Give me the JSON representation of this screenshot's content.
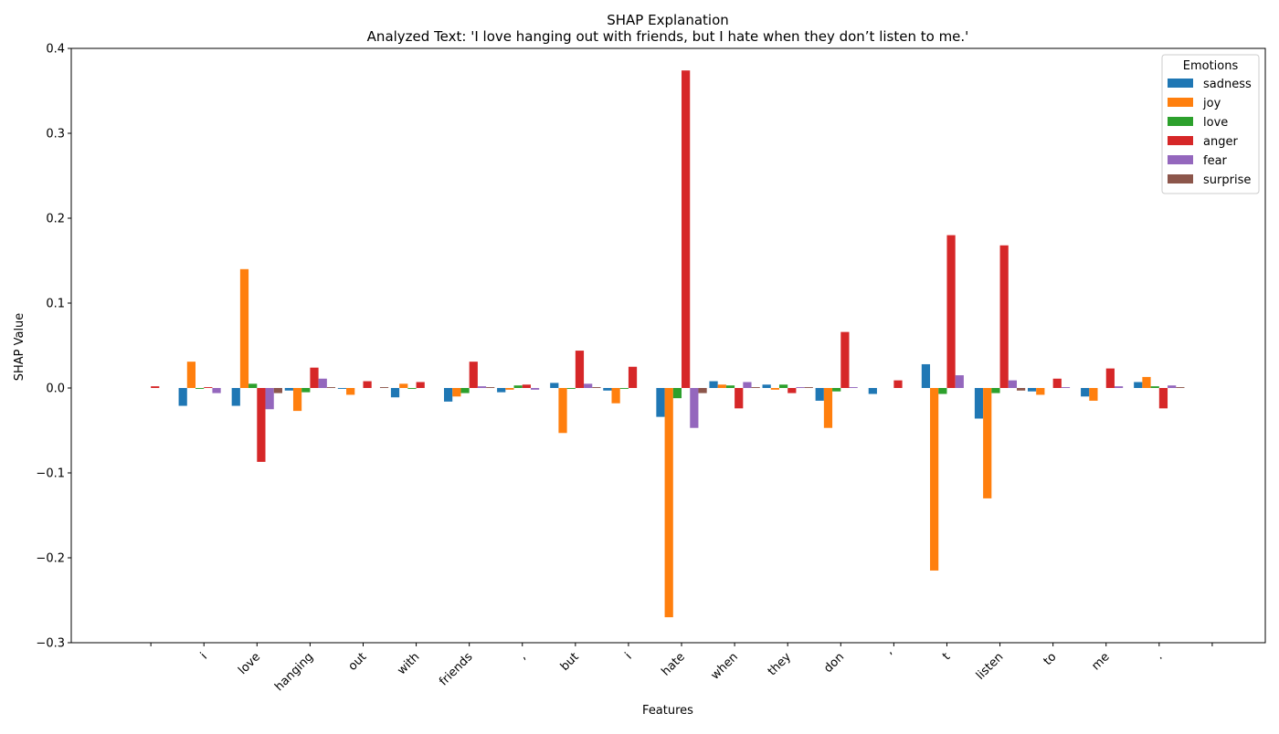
{
  "chart_data": {
    "type": "bar",
    "title": "SHAP Explanation",
    "subtitle": "Analyzed Text: 'I love hanging out with friends, but I hate when they don’t listen to me.'",
    "xlabel": "Features",
    "ylabel": "SHAP Value",
    "ylim": [
      -0.3,
      0.4
    ],
    "yticks": [
      -0.3,
      -0.2,
      -0.1,
      0.0,
      0.1,
      0.2,
      0.3,
      0.4
    ],
    "ytick_labels": [
      "−0.3",
      "−0.2",
      "−0.1",
      "0.0",
      "0.1",
      "0.2",
      "0.3",
      "0.4"
    ],
    "grid": false,
    "legend": {
      "title": "Emotions",
      "position": "top-right"
    },
    "categories": [
      "",
      "i",
      "love",
      "hanging",
      "out",
      "with",
      "friends",
      ",",
      "but",
      "i",
      "hate",
      "when",
      "they",
      "don",
      "’",
      "t",
      "listen",
      "to",
      "me",
      ".",
      ""
    ],
    "series": [
      {
        "name": "sadness",
        "color": "#1f77b4",
        "values": [
          0,
          -0.021,
          -0.021,
          -0.003,
          -0.001,
          -0.011,
          -0.016,
          -0.005,
          0.006,
          -0.003,
          -0.034,
          0.008,
          0.004,
          -0.015,
          -0.007,
          0.028,
          -0.036,
          -0.004,
          -0.01,
          0.007,
          0
        ]
      },
      {
        "name": "joy",
        "color": "#ff7f0e",
        "values": [
          0,
          0.031,
          0.14,
          -0.027,
          -0.008,
          0.005,
          -0.01,
          -0.002,
          -0.053,
          -0.018,
          -0.27,
          0.004,
          -0.002,
          -0.047,
          0,
          -0.215,
          -0.13,
          -0.008,
          -0.015,
          0.013,
          0
        ]
      },
      {
        "name": "love",
        "color": "#2ca02c",
        "values": [
          0,
          -0.001,
          0.005,
          -0.005,
          0,
          -0.001,
          -0.006,
          0.003,
          -0.001,
          -0.001,
          -0.012,
          0.003,
          0.004,
          -0.004,
          0,
          -0.007,
          -0.006,
          0,
          0,
          0.002,
          0
        ]
      },
      {
        "name": "anger",
        "color": "#d62728",
        "values": [
          0.002,
          0.001,
          -0.087,
          0.024,
          0.008,
          0.007,
          0.031,
          0.004,
          0.044,
          0.025,
          0.374,
          -0.024,
          -0.006,
          0.066,
          0.009,
          0.18,
          0.168,
          0.011,
          0.023,
          -0.024,
          0
        ]
      },
      {
        "name": "fear",
        "color": "#9467bd",
        "values": [
          0,
          -0.006,
          -0.025,
          0.011,
          0,
          0,
          0.002,
          -0.002,
          0.005,
          0,
          -0.047,
          0.007,
          0.001,
          0.001,
          0,
          0.015,
          0.009,
          0.001,
          0.002,
          0.003,
          0
        ]
      },
      {
        "name": "surprise",
        "color": "#8c564b",
        "values": [
          0,
          0,
          -0.006,
          0.001,
          0.001,
          0,
          0.001,
          0,
          0.001,
          0,
          -0.006,
          0.001,
          0.001,
          0,
          0,
          0,
          -0.003,
          0,
          0,
          0.001,
          0
        ]
      }
    ]
  }
}
